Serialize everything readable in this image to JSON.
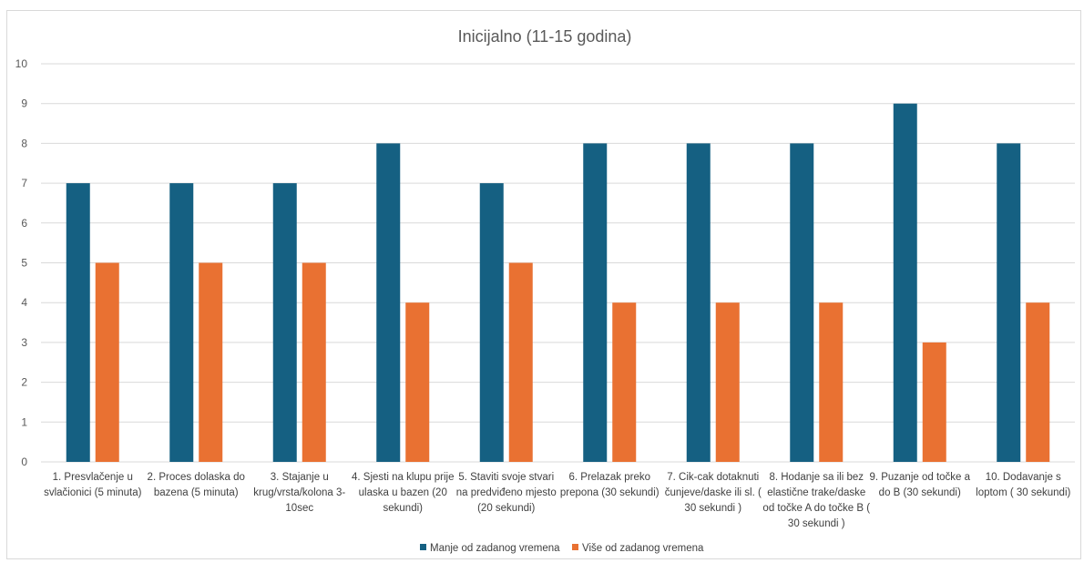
{
  "colors": {
    "series1": "#156082",
    "series2": "#E97132",
    "grid": "#d9d9d9",
    "text": "#595959"
  },
  "chart_data": {
    "type": "bar",
    "title": "Inicijalno (11-15 godina)",
    "xlabel": "",
    "ylabel": "",
    "ylim": [
      0,
      10
    ],
    "yticks": [
      0,
      1,
      2,
      3,
      4,
      5,
      6,
      7,
      8,
      9,
      10
    ],
    "grid": true,
    "legend_position": "bottom",
    "categories": [
      [
        "1. Presvlačenje u",
        "svlačionici (5 minuta)"
      ],
      [
        "2. Proces dolaska do",
        "bazena (5 minuta)"
      ],
      [
        "3. Stajanje u",
        "krug/vrsta/kolona 3-",
        "10sec"
      ],
      [
        "4. Sjesti na klupu prije",
        "ulaska u bazen (20",
        "sekundi)"
      ],
      [
        "5. Staviti svoje stvari",
        "na predviđeno mjesto",
        "(20 sekundi)"
      ],
      [
        "6. Prelazak preko",
        "prepona (30 sekundi)"
      ],
      [
        "7. Cik-cak dotaknuti",
        "čunjeve/daske ili sl. (",
        "30 sekundi )"
      ],
      [
        "8. Hodanje sa ili bez",
        "elastične trake/daske",
        "od točke A do točke B (",
        "30 sekundi )"
      ],
      [
        "9. Puzanje od točke a",
        "do B (30 sekundi)"
      ],
      [
        "10. Dodavanje s",
        "loptom ( 30 sekundi)"
      ]
    ],
    "series": [
      {
        "name": "Manje od zadanog vremena",
        "values": [
          7,
          7,
          7,
          8,
          7,
          8,
          8,
          8,
          9,
          8
        ]
      },
      {
        "name": "Više od zadanog vremena",
        "values": [
          5,
          5,
          5,
          4,
          5,
          4,
          4,
          4,
          3,
          4
        ]
      }
    ]
  }
}
